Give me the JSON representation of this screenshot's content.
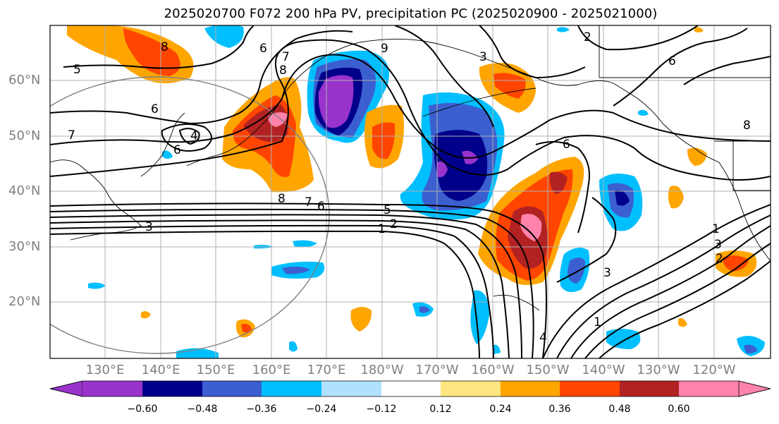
{
  "title": "2025020700 F072 200 hPa PV, precipitation PC (2025020900 - 2025021000)",
  "lat_labels": [
    "60°N",
    "50°N",
    "40°N",
    "30°N",
    "20°N"
  ],
  "lon_labels": [
    "130°E",
    "140°E",
    "150°E",
    "160°E",
    "170°E",
    "180°W",
    "170°W",
    "160°W",
    "150°W",
    "140°W",
    "130°W",
    "120°W"
  ],
  "colorbar": {
    "ticks": [
      "−0.60",
      "−0.48",
      "−0.36",
      "−0.24",
      "−0.12",
      "0.12",
      "0.24",
      "0.36",
      "0.48",
      "0.60"
    ],
    "colors": [
      "#9933cc",
      "#00008b",
      "#3b5fcf",
      "#00bfff",
      "#b0e2ff",
      "#ffffff",
      "#ffe680",
      "#ffa500",
      "#ff4500",
      "#b22222",
      "#ff82ab"
    ]
  },
  "contour_labels": [
    "5",
    "7",
    "4",
    "6",
    "6",
    "7",
    "9",
    "3",
    "2",
    "6",
    "8",
    "8",
    "7",
    "6",
    "5",
    "2",
    "1",
    "3",
    "6",
    "3",
    "1",
    "4",
    "1",
    "2",
    "3",
    "8",
    "6",
    "8"
  ],
  "colors": {
    "purple": "#9933cc",
    "navy": "#00008b",
    "blue": "#3b5fcf",
    "skyblue": "#00bfff",
    "lightblue": "#b0e2ff",
    "yellow": "#ffe680",
    "orange": "#ffa500",
    "redorange": "#ff4500",
    "darkred": "#b22222",
    "pink": "#ff82ab"
  }
}
